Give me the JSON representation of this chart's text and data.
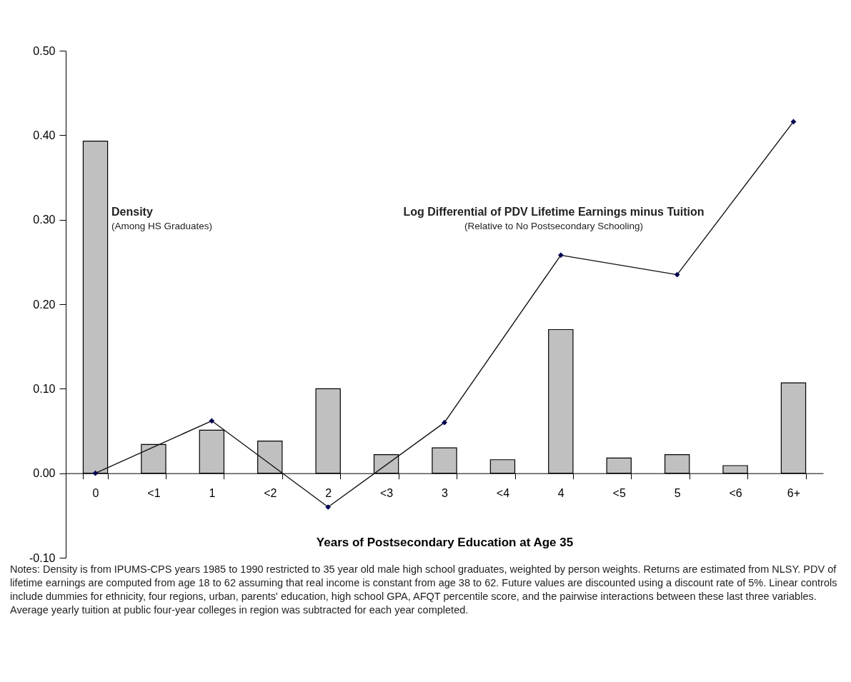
{
  "chart_data": {
    "type": "bar",
    "xlabel": "Years of Postsecondary Education at Age 35",
    "categories": [
      "0",
      "<1",
      "1",
      "<2",
      "2",
      "<3",
      "3",
      "<4",
      "4",
      "<5",
      "5",
      "<6",
      "6+"
    ],
    "series": [
      {
        "name": "Density",
        "color": "#c0c0c0",
        "values": [
          0.393,
          0.034,
          0.051,
          0.038,
          0.1,
          0.022,
          0.03,
          0.016,
          0.17,
          0.018,
          0.022,
          0.009,
          0.107
        ]
      },
      {
        "name": "Log Differential of PDV Lifetime Earnings minus Tuition",
        "type": "line",
        "color": "#000050",
        "marker": "diamond",
        "x": [
          "0",
          "1",
          "2",
          "3",
          "4",
          "5",
          "6+"
        ],
        "values": [
          0.0,
          0.062,
          -0.04,
          0.06,
          0.258,
          0.235,
          0.416
        ]
      }
    ],
    "ylim": [
      -0.1,
      0.5
    ],
    "yticks": [
      {
        "value": -0.1,
        "label": "-0.10"
      },
      {
        "value": 0,
        "label": "0.00"
      },
      {
        "value": 0.1,
        "label": "0.10"
      },
      {
        "value": 0.2,
        "label": "0.20"
      },
      {
        "value": 0.3,
        "label": "0.30"
      },
      {
        "value": 0.4,
        "label": "0.40"
      },
      {
        "value": 0.5,
        "label": "0.50"
      }
    ],
    "annotations": [
      "(Among HS Graduates)",
      "(Relative to No Postsecondary Schooling)",
      "Notes: Density is from IPUMS-CPS years 1985 to 1990 restricted to 35 year old male high school graduates, weighted by person weights. Returns are estimated from NLSY. PDV of lifetime earnings are computed from age 18 to 62 assuming that real income is constant from age 38 to 62. Future values are discounted using a discount rate of 5%. Linear controls include dummies for ethnicity, four regions, urban, parents' education, high school GPA, AFQT percentile score, and the  pairwise interactions between these last three variables. Average yearly tuition at public four-year colleges in region was subtracted for each year completed."
    ]
  }
}
